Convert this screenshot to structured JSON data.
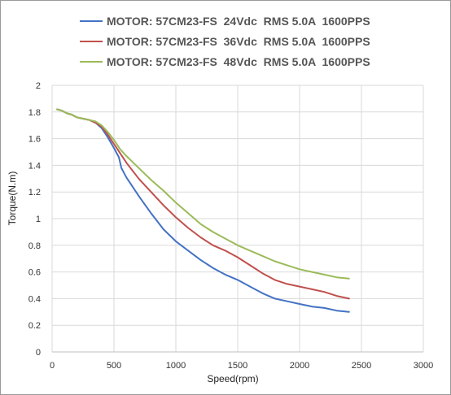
{
  "chart_data": {
    "type": "line",
    "title": "",
    "xlabel": "Speed(rpm)",
    "ylabel": "Torque(N.m)",
    "xlim": [
      0,
      3000
    ],
    "ylim": [
      0,
      2
    ],
    "x_ticks": [
      "0",
      "500",
      "1000",
      "1500",
      "2000",
      "2500",
      "3000"
    ],
    "y_ticks": [
      "0",
      "0.2",
      "0.4",
      "0.6",
      "0.8",
      "1",
      "1.2",
      "1.4",
      "1.6",
      "1.8",
      "2"
    ],
    "grid": true,
    "legend_position": "top",
    "series": [
      {
        "name": "MOTOR: 57CM23-FS  24Vdc  RMS 5.0A  1600PPS",
        "color": "#4472c4",
        "points": [
          [
            40,
            1.82
          ],
          [
            80,
            1.81
          ],
          [
            120,
            1.79
          ],
          [
            160,
            1.78
          ],
          [
            200,
            1.76
          ],
          [
            250,
            1.75
          ],
          [
            300,
            1.74
          ],
          [
            350,
            1.72
          ],
          [
            400,
            1.68
          ],
          [
            450,
            1.61
          ],
          [
            500,
            1.53
          ],
          [
            540,
            1.46
          ],
          [
            560,
            1.38
          ],
          [
            600,
            1.31
          ],
          [
            700,
            1.17
          ],
          [
            800,
            1.04
          ],
          [
            900,
            0.92
          ],
          [
            1000,
            0.83
          ],
          [
            1100,
            0.76
          ],
          [
            1200,
            0.69
          ],
          [
            1300,
            0.63
          ],
          [
            1400,
            0.58
          ],
          [
            1500,
            0.54
          ],
          [
            1600,
            0.49
          ],
          [
            1700,
            0.44
          ],
          [
            1800,
            0.4
          ],
          [
            1900,
            0.38
          ],
          [
            2000,
            0.36
          ],
          [
            2100,
            0.34
          ],
          [
            2200,
            0.33
          ],
          [
            2300,
            0.31
          ],
          [
            2400,
            0.3
          ]
        ]
      },
      {
        "name": "MOTOR: 57CM23-FS  36Vdc  RMS 5.0A  1600PPS",
        "color": "#c0504d",
        "points": [
          [
            40,
            1.82
          ],
          [
            80,
            1.81
          ],
          [
            120,
            1.79
          ],
          [
            160,
            1.78
          ],
          [
            200,
            1.76
          ],
          [
            250,
            1.75
          ],
          [
            300,
            1.74
          ],
          [
            350,
            1.72
          ],
          [
            400,
            1.69
          ],
          [
            450,
            1.63
          ],
          [
            500,
            1.56
          ],
          [
            550,
            1.49
          ],
          [
            600,
            1.42
          ],
          [
            700,
            1.3
          ],
          [
            800,
            1.2
          ],
          [
            900,
            1.1
          ],
          [
            1000,
            1.01
          ],
          [
            1100,
            0.93
          ],
          [
            1200,
            0.86
          ],
          [
            1300,
            0.8
          ],
          [
            1400,
            0.76
          ],
          [
            1500,
            0.71
          ],
          [
            1600,
            0.65
          ],
          [
            1700,
            0.59
          ],
          [
            1800,
            0.54
          ],
          [
            1900,
            0.51
          ],
          [
            2000,
            0.49
          ],
          [
            2100,
            0.47
          ],
          [
            2200,
            0.45
          ],
          [
            2300,
            0.42
          ],
          [
            2400,
            0.4
          ]
        ]
      },
      {
        "name": "MOTOR: 57CM23-FS  48Vdc  RMS 5.0A  1600PPS",
        "color": "#9bbb59",
        "points": [
          [
            40,
            1.82
          ],
          [
            80,
            1.81
          ],
          [
            120,
            1.79
          ],
          [
            160,
            1.78
          ],
          [
            200,
            1.76
          ],
          [
            250,
            1.75
          ],
          [
            300,
            1.74
          ],
          [
            350,
            1.73
          ],
          [
            400,
            1.7
          ],
          [
            450,
            1.65
          ],
          [
            500,
            1.59
          ],
          [
            550,
            1.52
          ],
          [
            600,
            1.47
          ],
          [
            700,
            1.38
          ],
          [
            800,
            1.29
          ],
          [
            900,
            1.21
          ],
          [
            1000,
            1.12
          ],
          [
            1100,
            1.04
          ],
          [
            1200,
            0.96
          ],
          [
            1300,
            0.9
          ],
          [
            1400,
            0.85
          ],
          [
            1500,
            0.8
          ],
          [
            1600,
            0.76
          ],
          [
            1700,
            0.72
          ],
          [
            1800,
            0.68
          ],
          [
            1900,
            0.65
          ],
          [
            2000,
            0.62
          ],
          [
            2100,
            0.6
          ],
          [
            2200,
            0.58
          ],
          [
            2300,
            0.56
          ],
          [
            2400,
            0.55
          ]
        ]
      }
    ]
  }
}
